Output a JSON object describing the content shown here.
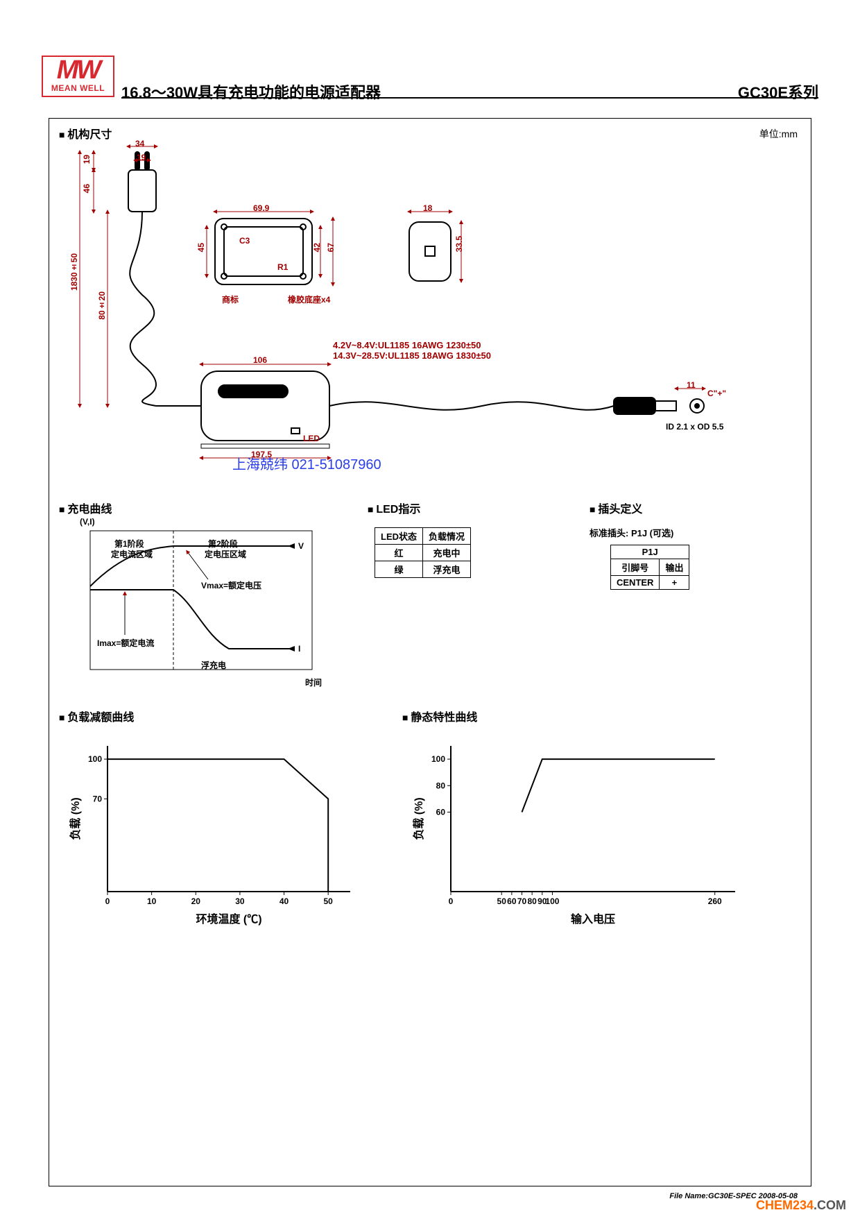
{
  "logo": {
    "mw": "MW",
    "sub": "MEAN WELL"
  },
  "header": {
    "title": "16.8～30W具有充电功能的电源适配器",
    "series": "GC30E系列"
  },
  "unit_label": "单位:mm",
  "sections": {
    "mech": "机构尺寸",
    "charge_curve": "充电曲线",
    "led": "LED指示",
    "plug": "插头定义",
    "derating": "负载减额曲线",
    "static": "静态特性曲线"
  },
  "mech_drawing": {
    "dimensions": {
      "plug_w": "34",
      "plug_prong": "19",
      "plug_h1": "19",
      "plug_h2": "46",
      "cord_len": "1830±50",
      "cord_seg": "80±20",
      "plate_w": "69.9",
      "plate_h": "45",
      "plate_ih": "42",
      "plate_oh": "67",
      "plate_ref_c3": "C3",
      "plate_ref_r1": "R1",
      "plate_lbl_logo": "商标",
      "plate_lbl_rubber": "橡胶底座x4",
      "side_w": "18",
      "side_h": "33.5",
      "body_w": "106",
      "slot_w": "197.5",
      "jack_len": "11",
      "jack_polarity": "C\"+\"",
      "jack_spec": "ID 2.1 x OD 5.5",
      "led_lbl": "LED"
    },
    "cable_specs": [
      "4.2V~8.4V:UL1185 16AWG 1230±50",
      "14.3V~28.5V:UL1185 18AWG 1830±50"
    ],
    "colors": {
      "dim_color": "#a00000",
      "line_color": "#000000"
    }
  },
  "watermark": "上海兢纬 021-51087960",
  "charge_curve": {
    "y_axis": "(V,I)",
    "stage1": "第1阶段",
    "stage1_sub": "定电流区域",
    "stage2": "第2阶段",
    "stage2_sub": "定电压区域",
    "v_label": "V",
    "i_label": "I",
    "vmax": "Vmax=额定电压",
    "imax": "Imax=额定电流",
    "float": "浮充电",
    "x_axis": "时间"
  },
  "led_table": {
    "header": [
      "LED状态",
      "负载情况"
    ],
    "rows": [
      [
        "红",
        "充电中"
      ],
      [
        "绿",
        "浮充电"
      ]
    ]
  },
  "plug_def": {
    "note": "标准插头: P1J (可选)",
    "table": {
      "title": "P1J",
      "header": [
        "引脚号",
        "输出"
      ],
      "rows": [
        [
          "CENTER",
          "+"
        ]
      ]
    }
  },
  "derating_chart": {
    "type": "line",
    "x_label": "环境温度 (℃)",
    "y_label": "负载 (%)",
    "x_ticks": [
      0,
      10,
      20,
      30,
      40,
      50
    ],
    "y_ticks": [
      70,
      100
    ],
    "xlim": [
      0,
      55
    ],
    "ylim": [
      0,
      110
    ],
    "points": [
      [
        0,
        100
      ],
      [
        40,
        100
      ],
      [
        50,
        70
      ],
      [
        50,
        0
      ]
    ],
    "line_color": "#000000",
    "line_width": 2,
    "background_color": "#ffffff"
  },
  "static_chart": {
    "type": "line",
    "x_label": "输入电压",
    "y_label": "负载 (%)",
    "x_ticks": [
      0,
      50,
      60,
      70,
      80,
      90,
      100,
      260
    ],
    "y_ticks": [
      60,
      80,
      100
    ],
    "xlim": [
      0,
      280
    ],
    "ylim": [
      0,
      110
    ],
    "points": [
      [
        70,
        60
      ],
      [
        90,
        100
      ],
      [
        260,
        100
      ]
    ],
    "line_color": "#000000",
    "line_width": 2,
    "background_color": "#ffffff"
  },
  "file_name": "File Name:GC30E-SPEC  2008-05-08",
  "site_brand": {
    "chem": "CHEM234",
    "dot": ".COM",
    "color1": "#ff6a00",
    "color2": "#555555"
  }
}
